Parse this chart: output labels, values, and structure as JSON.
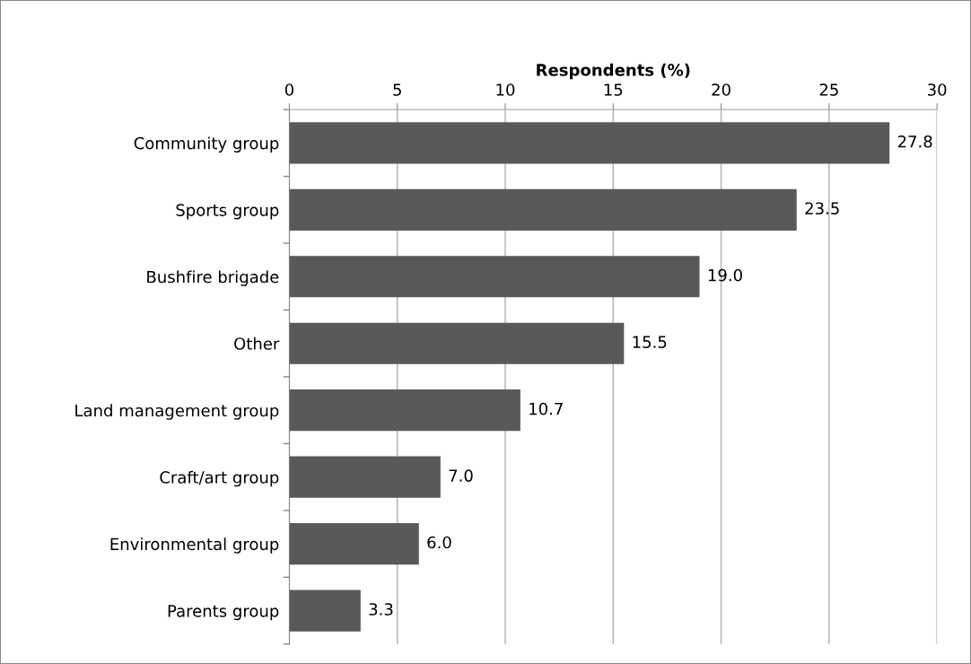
{
  "chart_data": {
    "type": "bar",
    "orientation": "horizontal",
    "xlabel": "Respondents (%)",
    "categories": [
      "Community group",
      "Sports group",
      "Bushfire brigade",
      "Other",
      "Land management group",
      "Craft/art group",
      "Environmental group",
      "Parents group"
    ],
    "values": [
      27.8,
      23.5,
      19.0,
      15.5,
      10.7,
      7.0,
      6.0,
      3.3
    ],
    "value_labels": [
      "27.8",
      "23.5",
      "19.0",
      "15.5",
      "10.7",
      "7.0",
      "6.0",
      "3.3"
    ],
    "color": "#595959",
    "xlim": [
      0,
      30
    ],
    "xticks": [
      0,
      5,
      10,
      15,
      20,
      25,
      30
    ],
    "grid": "x",
    "legend": false
  }
}
